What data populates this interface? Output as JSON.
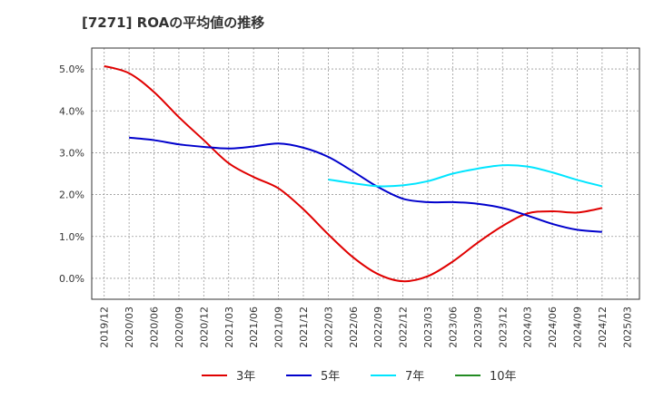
{
  "header": {
    "title": "[7271]  ROAの平均値の推移"
  },
  "chart_data": {
    "type": "line",
    "title": "[7271]  ROAの平均値の推移",
    "xlabel": "",
    "ylabel": "",
    "ylim": [
      -0.5,
      5.5
    ],
    "y_ticks": [
      "5.0%",
      "4.0%",
      "3.0%",
      "2.0%",
      "1.0%",
      "0.0%"
    ],
    "y_tick_values": [
      5.0,
      4.0,
      3.0,
      2.0,
      1.0,
      0.0
    ],
    "x_ticks": [
      "2019/12",
      "2020/03",
      "2020/06",
      "2020/09",
      "2020/12",
      "2021/03",
      "2021/06",
      "2021/09",
      "2021/12",
      "2022/03",
      "2022/06",
      "2022/09",
      "2022/12",
      "2023/03",
      "2023/06",
      "2023/09",
      "2023/12",
      "2024/03",
      "2024/06",
      "2024/09",
      "2024/12",
      "2025/03"
    ],
    "grid": true,
    "legend_position": "bottom",
    "series": [
      {
        "name": "3年",
        "color": "#e00000",
        "x": [
          "2019/12",
          "2020/03",
          "2020/06",
          "2020/09",
          "2020/12",
          "2021/03",
          "2021/06",
          "2021/09",
          "2021/12",
          "2022/03",
          "2022/06",
          "2022/09",
          "2022/12",
          "2023/03",
          "2023/06",
          "2023/09",
          "2023/12",
          "2024/03",
          "2024/06",
          "2024/09",
          "2024/12"
        ],
        "values": [
          5.07,
          4.9,
          4.45,
          3.85,
          3.3,
          2.75,
          2.42,
          2.15,
          1.65,
          1.05,
          0.5,
          0.1,
          -0.07,
          0.05,
          0.4,
          0.85,
          1.25,
          1.55,
          1.6,
          1.57,
          1.68
        ]
      },
      {
        "name": "5年",
        "color": "#0000cc",
        "x": [
          "2020/03",
          "2020/06",
          "2020/09",
          "2020/12",
          "2021/03",
          "2021/06",
          "2021/09",
          "2021/12",
          "2022/03",
          "2022/06",
          "2022/09",
          "2022/12",
          "2023/03",
          "2023/06",
          "2023/09",
          "2023/12",
          "2024/03",
          "2024/06",
          "2024/09",
          "2024/12"
        ],
        "values": [
          3.36,
          3.3,
          3.2,
          3.14,
          3.1,
          3.15,
          3.22,
          3.12,
          2.9,
          2.55,
          2.18,
          1.9,
          1.82,
          1.82,
          1.78,
          1.68,
          1.5,
          1.3,
          1.16,
          1.11
        ]
      },
      {
        "name": "7年",
        "color": "#00e5ff",
        "x": [
          "2022/03",
          "2022/06",
          "2022/09",
          "2022/12",
          "2023/03",
          "2023/06",
          "2023/09",
          "2023/12",
          "2024/03",
          "2024/06",
          "2024/09",
          "2024/12"
        ],
        "values": [
          2.36,
          2.27,
          2.2,
          2.22,
          2.32,
          2.5,
          2.62,
          2.7,
          2.67,
          2.53,
          2.35,
          2.2
        ]
      },
      {
        "name": "10年",
        "color": "#228b22",
        "x": [],
        "values": []
      }
    ]
  }
}
